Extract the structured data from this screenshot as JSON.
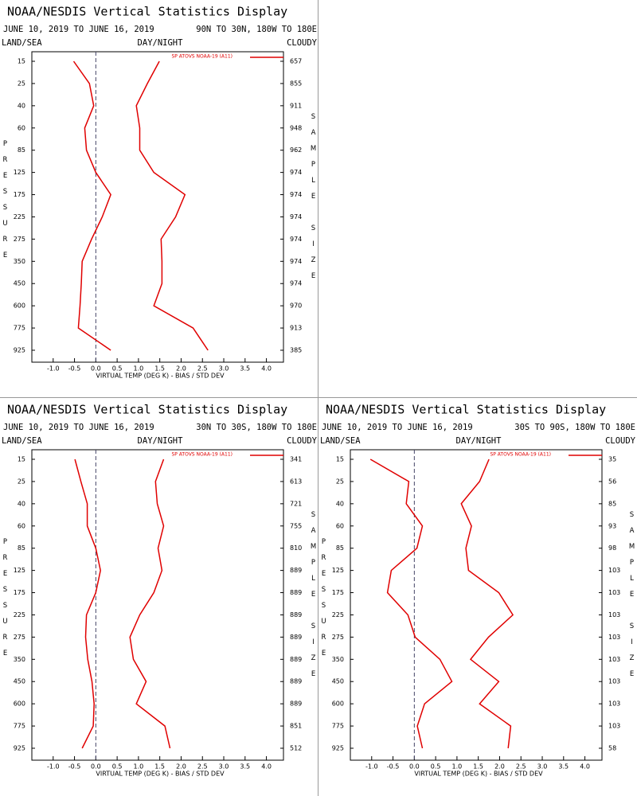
{
  "chart_data": [
    {
      "type": "line",
      "orientation": "horizontal",
      "title": "NOAA/NESDIS Vertical Statistics Display",
      "date_range": "JUNE 10, 2019 TO JUNE 16, 2019",
      "region": "90N TO 30N, 180W TO 180E",
      "land_sea": "LAND/SEA",
      "day_night": "DAY/NIGHT",
      "cloudy": "CLOUDY",
      "y_label": "PRESSURE",
      "y2_label": "SAMPLE SIZE",
      "x_label": "VIRTUAL TEMP (DEG K) - BIAS / STD DEV",
      "categories": [
        15,
        25,
        40,
        60,
        85,
        125,
        175,
        225,
        275,
        350,
        450,
        600,
        775,
        925
      ],
      "sample_sizes": [
        657,
        855,
        911,
        948,
        962,
        974,
        974,
        974,
        974,
        974,
        974,
        970,
        913,
        385
      ],
      "series": [
        {
          "name": "SP ATOVS NOAA-19 (A11)",
          "color": "#e00000",
          "values": [
            -0.52,
            -0.15,
            -0.05,
            -0.26,
            -0.22,
            0.0,
            0.35,
            0.15,
            -0.1,
            -0.32,
            -0.34,
            -0.37,
            -0.41,
            0.35
          ]
        },
        {
          "color": "#e00000",
          "values": [
            1.49,
            1.21,
            0.95,
            1.03,
            1.03,
            1.36,
            2.09,
            1.87,
            1.53,
            1.55,
            1.55,
            1.36,
            2.28,
            2.63
          ]
        }
      ],
      "xlim": [
        -1.5,
        4.4
      ],
      "xticks": [
        {
          "value": -1,
          "label": "-1.0"
        },
        {
          "value": -0.5,
          "label": "-0.5"
        },
        {
          "value": 0,
          "label": "0.0"
        },
        0.5,
        {
          "value": 1,
          "label": "1.0"
        },
        1.5,
        {
          "value": 2,
          "label": "2.0"
        },
        2.5,
        {
          "value": 3,
          "label": "3.0"
        },
        3.5,
        {
          "value": 4,
          "label": "4.0"
        }
      ]
    },
    {
      "type": "line",
      "orientation": "horizontal",
      "title": "NOAA/NESDIS Vertical Statistics Display",
      "date_range": "JUNE 10, 2019 TO JUNE 16, 2019",
      "region": "30N TO 30S, 180W TO 180E",
      "land_sea": "LAND/SEA",
      "day_night": "DAY/NIGHT",
      "cloudy": "CLOUDY",
      "y_label": "PRESSURE",
      "y2_label": "SAMPLE SIZE",
      "x_label": "VIRTUAL TEMP (DEG K) - BIAS / STD DEV",
      "categories": [
        15,
        25,
        40,
        60,
        85,
        125,
        175,
        225,
        275,
        350,
        450,
        600,
        775,
        925
      ],
      "sample_sizes": [
        341,
        613,
        721,
        755,
        810,
        889,
        889,
        889,
        889,
        889,
        889,
        889,
        851,
        512
      ],
      "series": [
        {
          "name": "SP ATOVS NOAA-19 (A11)",
          "color": "#e00000",
          "values": [
            -0.49,
            -0.35,
            -0.2,
            -0.2,
            0.0,
            0.11,
            0.0,
            -0.22,
            -0.24,
            -0.19,
            -0.09,
            -0.04,
            -0.06,
            -0.32
          ]
        },
        {
          "color": "#e00000",
          "values": [
            1.59,
            1.4,
            1.44,
            1.59,
            1.46,
            1.55,
            1.36,
            1.03,
            0.8,
            0.88,
            1.18,
            0.95,
            1.62,
            1.74
          ]
        }
      ],
      "xlim": [
        -1.5,
        4.4
      ],
      "xticks": [
        {
          "value": -1,
          "label": "-1.0"
        },
        {
          "value": -0.5,
          "label": "-0.5"
        },
        {
          "value": 0,
          "label": "0.0"
        },
        0.5,
        {
          "value": 1,
          "label": "1.0"
        },
        1.5,
        {
          "value": 2,
          "label": "2.0"
        },
        2.5,
        {
          "value": 3,
          "label": "3.0"
        },
        3.5,
        {
          "value": 4,
          "label": "4.0"
        }
      ]
    },
    {
      "type": "line",
      "orientation": "horizontal",
      "title": "NOAA/NESDIS Vertical Statistics Display",
      "date_range": "JUNE 10, 2019 TO JUNE 16, 2019",
      "region": "30S TO 90S, 180W TO 180E",
      "land_sea": "LAND/SEA",
      "day_night": "DAY/NIGHT",
      "cloudy": "CLOUDY",
      "y_label": "PRESSURE",
      "y2_label": "SAMPLE SIZE",
      "x_label": "VIRTUAL TEMP (DEG K) - BIAS / STD DEV",
      "categories": [
        15,
        25,
        40,
        60,
        85,
        125,
        175,
        225,
        275,
        350,
        450,
        600,
        775,
        925
      ],
      "sample_sizes": [
        35,
        56,
        85,
        93,
        98,
        103,
        103,
        103,
        103,
        103,
        103,
        103,
        103,
        58
      ],
      "series": [
        {
          "name": "SP ATOVS NOAA-19 (A11)",
          "color": "#e00000",
          "values": [
            -1.03,
            -0.13,
            -0.19,
            0.19,
            0.06,
            -0.54,
            -0.63,
            -0.15,
            0.02,
            0.6,
            0.88,
            0.24,
            0.07,
            0.19
          ]
        },
        {
          "color": "#e00000",
          "values": [
            1.75,
            1.53,
            1.1,
            1.34,
            1.21,
            1.27,
            1.98,
            2.31,
            1.74,
            1.32,
            1.98,
            1.53,
            2.26,
            2.2
          ]
        }
      ],
      "xlim": [
        -1.5,
        4.4
      ],
      "xticks": [
        {
          "value": -1,
          "label": "-1.0"
        },
        {
          "value": -0.5,
          "label": "-0.5"
        },
        {
          "value": 0,
          "label": "0.0"
        },
        0.5,
        {
          "value": 1,
          "label": "1.0"
        },
        1.5,
        {
          "value": 2,
          "label": "2.0"
        },
        2.5,
        {
          "value": 3,
          "label": "3.0"
        },
        3.5,
        {
          "value": 4,
          "label": "4.0"
        }
      ]
    }
  ]
}
